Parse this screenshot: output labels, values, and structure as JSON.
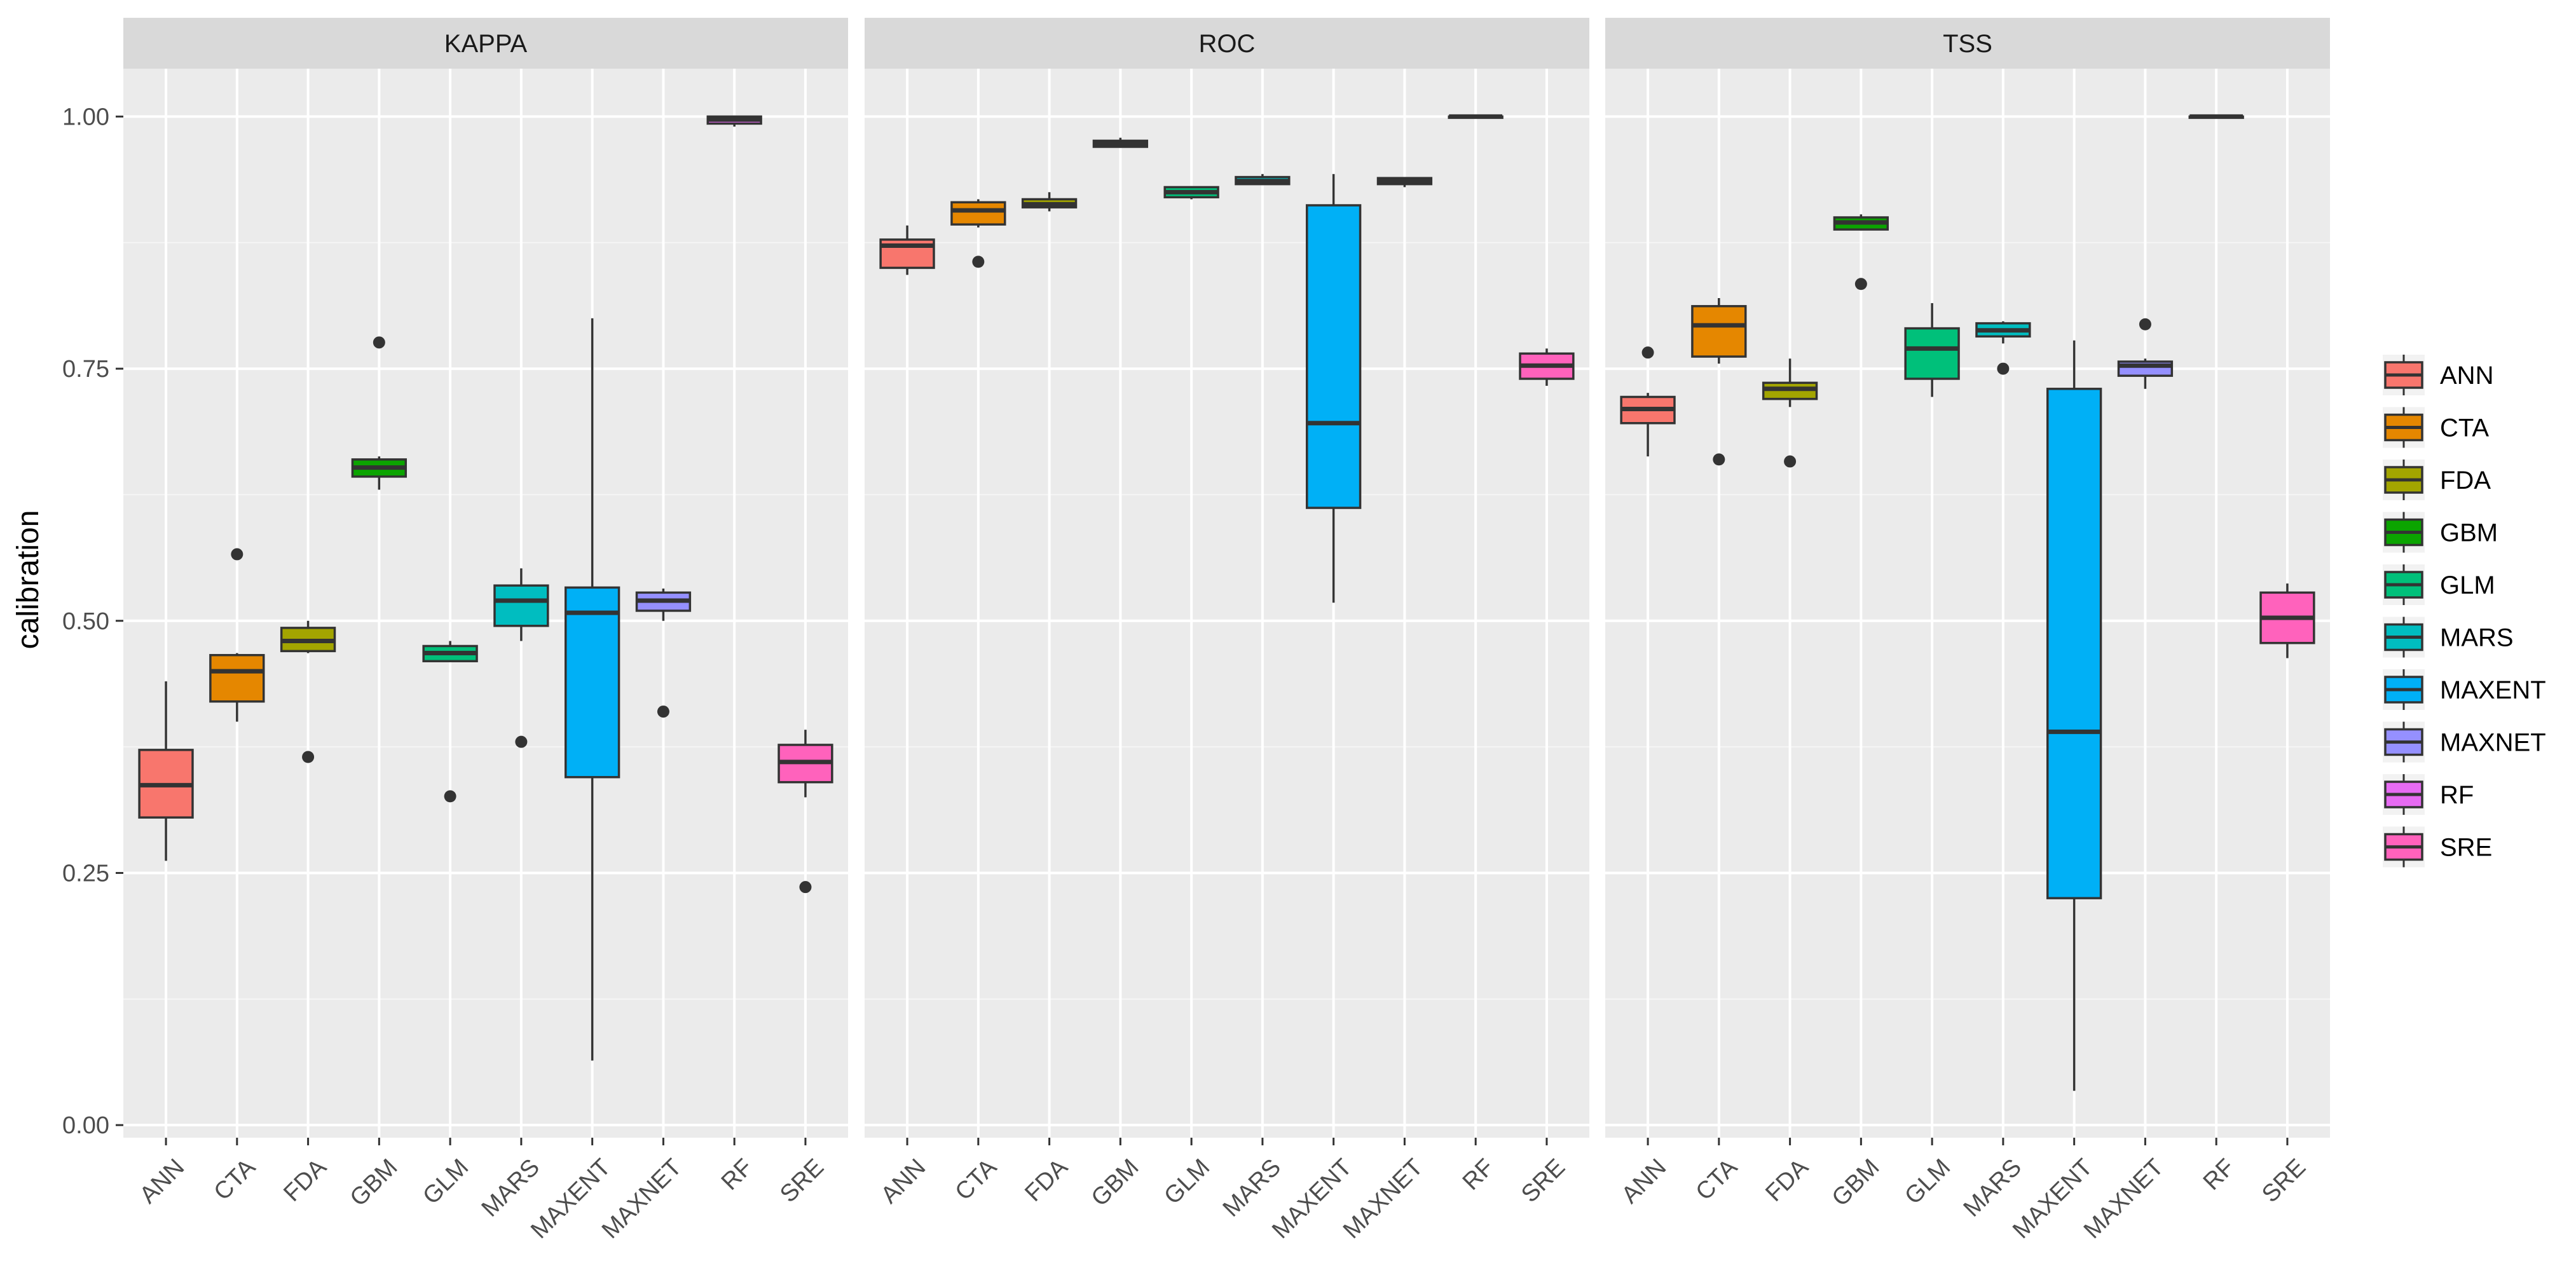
{
  "chart_data": {
    "type": "boxplot",
    "facet_by": "metric",
    "ylabel": "calibration",
    "xlabel": "",
    "ylim": [
      0,
      1.05
    ],
    "y_ticks": [
      "0.00",
      "0.25",
      "0.50",
      "0.75",
      "1.00"
    ],
    "y_tick_values": [
      0,
      0.25,
      0.5,
      0.75,
      1.0
    ],
    "categories": [
      "ANN",
      "CTA",
      "FDA",
      "GBM",
      "GLM",
      "MARS",
      "MAXENT",
      "MAXNET",
      "RF",
      "SRE"
    ],
    "colors": {
      "ANN": "#F8766D",
      "CTA": "#E58700",
      "FDA": "#A3A500",
      "GBM": "#0BA400",
      "GLM": "#00C07A",
      "MARS": "#00BDC0",
      "MAXENT": "#00B0F6",
      "MAXNET": "#9590FF",
      "RF": "#E76BF3",
      "SRE": "#FF62BC"
    },
    "legend": [
      "ANN",
      "CTA",
      "FDA",
      "GBM",
      "GLM",
      "MARS",
      "MAXENT",
      "MAXNET",
      "RF",
      "SRE"
    ],
    "legend_position": "right",
    "panels": [
      {
        "title": "KAPPA",
        "boxes": [
          {
            "model": "ANN",
            "min": 0.262,
            "q1": 0.305,
            "median": 0.337,
            "q3": 0.372,
            "max": 0.44,
            "outliers": []
          },
          {
            "model": "CTA",
            "min": 0.4,
            "q1": 0.42,
            "median": 0.45,
            "q3": 0.466,
            "max": 0.468,
            "outliers": [
              0.566
            ]
          },
          {
            "model": "FDA",
            "min": 0.468,
            "q1": 0.47,
            "median": 0.48,
            "q3": 0.493,
            "max": 0.5,
            "outliers": [
              0.365
            ]
          },
          {
            "model": "GBM",
            "min": 0.63,
            "q1": 0.643,
            "median": 0.652,
            "q3": 0.66,
            "max": 0.663,
            "outliers": [
              0.776
            ]
          },
          {
            "model": "GLM",
            "min": 0.46,
            "q1": 0.46,
            "median": 0.468,
            "q3": 0.475,
            "max": 0.48,
            "outliers": [
              0.326
            ]
          },
          {
            "model": "MARS",
            "min": 0.48,
            "q1": 0.495,
            "median": 0.52,
            "q3": 0.535,
            "max": 0.552,
            "outliers": [
              0.38
            ]
          },
          {
            "model": "MAXENT",
            "min": 0.064,
            "q1": 0.345,
            "median": 0.508,
            "q3": 0.533,
            "max": 0.8,
            "outliers": []
          },
          {
            "model": "MAXNET",
            "min": 0.5,
            "q1": 0.51,
            "median": 0.52,
            "q3": 0.528,
            "max": 0.532,
            "outliers": [
              0.41
            ]
          },
          {
            "model": "RF",
            "min": 0.99,
            "q1": 0.993,
            "median": 0.997,
            "q3": 1.0,
            "max": 1.0,
            "outliers": []
          },
          {
            "model": "SRE",
            "min": 0.325,
            "q1": 0.34,
            "median": 0.36,
            "q3": 0.377,
            "max": 0.392,
            "outliers": [
              0.236
            ]
          }
        ]
      },
      {
        "title": "ROC",
        "boxes": [
          {
            "model": "ANN",
            "min": 0.843,
            "q1": 0.85,
            "median": 0.872,
            "q3": 0.878,
            "max": 0.892,
            "outliers": []
          },
          {
            "model": "CTA",
            "min": 0.89,
            "q1": 0.893,
            "median": 0.907,
            "q3": 0.915,
            "max": 0.918,
            "outliers": [
              0.856
            ]
          },
          {
            "model": "FDA",
            "min": 0.906,
            "q1": 0.91,
            "median": 0.913,
            "q3": 0.918,
            "max": 0.925,
            "outliers": []
          },
          {
            "model": "GBM",
            "min": 0.969,
            "q1": 0.97,
            "median": 0.973,
            "q3": 0.976,
            "max": 0.979,
            "outliers": []
          },
          {
            "model": "GLM",
            "min": 0.918,
            "q1": 0.92,
            "median": 0.925,
            "q3": 0.93,
            "max": 0.931,
            "outliers": []
          },
          {
            "model": "MARS",
            "min": 0.932,
            "q1": 0.933,
            "median": 0.936,
            "q3": 0.94,
            "max": 0.943,
            "outliers": []
          },
          {
            "model": "MAXENT",
            "min": 0.518,
            "q1": 0.612,
            "median": 0.696,
            "q3": 0.912,
            "max": 0.943,
            "outliers": []
          },
          {
            "model": "MAXNET",
            "min": 0.93,
            "q1": 0.933,
            "median": 0.936,
            "q3": 0.939,
            "max": 0.94,
            "outliers": []
          },
          {
            "model": "RF",
            "min": 0.999,
            "q1": 1.0,
            "median": 1.0,
            "q3": 1.0,
            "max": 1.0,
            "outliers": []
          },
          {
            "model": "SRE",
            "min": 0.733,
            "q1": 0.74,
            "median": 0.753,
            "q3": 0.765,
            "max": 0.77,
            "outliers": []
          }
        ]
      },
      {
        "title": "TSS",
        "boxes": [
          {
            "model": "ANN",
            "min": 0.663,
            "q1": 0.696,
            "median": 0.71,
            "q3": 0.722,
            "max": 0.726,
            "outliers": [
              0.766
            ]
          },
          {
            "model": "CTA",
            "min": 0.755,
            "q1": 0.762,
            "median": 0.793,
            "q3": 0.812,
            "max": 0.82,
            "outliers": [
              0.66
            ]
          },
          {
            "model": "FDA",
            "min": 0.712,
            "q1": 0.72,
            "median": 0.73,
            "q3": 0.736,
            "max": 0.76,
            "outliers": [
              0.658
            ]
          },
          {
            "model": "GBM",
            "min": 0.887,
            "q1": 0.888,
            "median": 0.895,
            "q3": 0.9,
            "max": 0.903,
            "outliers": [
              0.834
            ]
          },
          {
            "model": "GLM",
            "min": 0.722,
            "q1": 0.74,
            "median": 0.77,
            "q3": 0.79,
            "max": 0.815,
            "outliers": []
          },
          {
            "model": "MARS",
            "min": 0.775,
            "q1": 0.782,
            "median": 0.788,
            "q3": 0.795,
            "max": 0.797,
            "outliers": [
              0.75
            ]
          },
          {
            "model": "MAXENT",
            "min": 0.034,
            "q1": 0.225,
            "median": 0.39,
            "q3": 0.73,
            "max": 0.778,
            "outliers": []
          },
          {
            "model": "MAXNET",
            "min": 0.73,
            "q1": 0.743,
            "median": 0.753,
            "q3": 0.757,
            "max": 0.76,
            "outliers": [
              0.794
            ]
          },
          {
            "model": "RF",
            "min": 0.999,
            "q1": 0.999,
            "median": 1.0,
            "q3": 1.0,
            "max": 1.0,
            "outliers": []
          },
          {
            "model": "SRE",
            "min": 0.463,
            "q1": 0.478,
            "median": 0.503,
            "q3": 0.528,
            "max": 0.537,
            "outliers": []
          }
        ]
      }
    ]
  }
}
